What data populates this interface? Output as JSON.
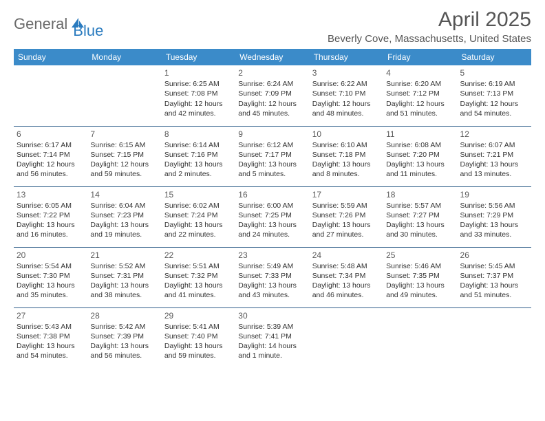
{
  "logo": {
    "part1": "General",
    "part2": "Blue"
  },
  "title": "April 2025",
  "location": "Beverly Cove, Massachusetts, United States",
  "colors": {
    "header_bg": "#3b8bc9",
    "header_text": "#ffffff",
    "border": "#2f5e8a",
    "logo_gray": "#6a6a6a",
    "logo_blue": "#2a7bbf",
    "body_text": "#333333"
  },
  "day_headers": [
    "Sunday",
    "Monday",
    "Tuesday",
    "Wednesday",
    "Thursday",
    "Friday",
    "Saturday"
  ],
  "weeks": [
    [
      null,
      null,
      {
        "n": "1",
        "sr": "Sunrise: 6:25 AM",
        "ss": "Sunset: 7:08 PM",
        "dl": "Daylight: 12 hours and 42 minutes."
      },
      {
        "n": "2",
        "sr": "Sunrise: 6:24 AM",
        "ss": "Sunset: 7:09 PM",
        "dl": "Daylight: 12 hours and 45 minutes."
      },
      {
        "n": "3",
        "sr": "Sunrise: 6:22 AM",
        "ss": "Sunset: 7:10 PM",
        "dl": "Daylight: 12 hours and 48 minutes."
      },
      {
        "n": "4",
        "sr": "Sunrise: 6:20 AM",
        "ss": "Sunset: 7:12 PM",
        "dl": "Daylight: 12 hours and 51 minutes."
      },
      {
        "n": "5",
        "sr": "Sunrise: 6:19 AM",
        "ss": "Sunset: 7:13 PM",
        "dl": "Daylight: 12 hours and 54 minutes."
      }
    ],
    [
      {
        "n": "6",
        "sr": "Sunrise: 6:17 AM",
        "ss": "Sunset: 7:14 PM",
        "dl": "Daylight: 12 hours and 56 minutes."
      },
      {
        "n": "7",
        "sr": "Sunrise: 6:15 AM",
        "ss": "Sunset: 7:15 PM",
        "dl": "Daylight: 12 hours and 59 minutes."
      },
      {
        "n": "8",
        "sr": "Sunrise: 6:14 AM",
        "ss": "Sunset: 7:16 PM",
        "dl": "Daylight: 13 hours and 2 minutes."
      },
      {
        "n": "9",
        "sr": "Sunrise: 6:12 AM",
        "ss": "Sunset: 7:17 PM",
        "dl": "Daylight: 13 hours and 5 minutes."
      },
      {
        "n": "10",
        "sr": "Sunrise: 6:10 AM",
        "ss": "Sunset: 7:18 PM",
        "dl": "Daylight: 13 hours and 8 minutes."
      },
      {
        "n": "11",
        "sr": "Sunrise: 6:08 AM",
        "ss": "Sunset: 7:20 PM",
        "dl": "Daylight: 13 hours and 11 minutes."
      },
      {
        "n": "12",
        "sr": "Sunrise: 6:07 AM",
        "ss": "Sunset: 7:21 PM",
        "dl": "Daylight: 13 hours and 13 minutes."
      }
    ],
    [
      {
        "n": "13",
        "sr": "Sunrise: 6:05 AM",
        "ss": "Sunset: 7:22 PM",
        "dl": "Daylight: 13 hours and 16 minutes."
      },
      {
        "n": "14",
        "sr": "Sunrise: 6:04 AM",
        "ss": "Sunset: 7:23 PM",
        "dl": "Daylight: 13 hours and 19 minutes."
      },
      {
        "n": "15",
        "sr": "Sunrise: 6:02 AM",
        "ss": "Sunset: 7:24 PM",
        "dl": "Daylight: 13 hours and 22 minutes."
      },
      {
        "n": "16",
        "sr": "Sunrise: 6:00 AM",
        "ss": "Sunset: 7:25 PM",
        "dl": "Daylight: 13 hours and 24 minutes."
      },
      {
        "n": "17",
        "sr": "Sunrise: 5:59 AM",
        "ss": "Sunset: 7:26 PM",
        "dl": "Daylight: 13 hours and 27 minutes."
      },
      {
        "n": "18",
        "sr": "Sunrise: 5:57 AM",
        "ss": "Sunset: 7:27 PM",
        "dl": "Daylight: 13 hours and 30 minutes."
      },
      {
        "n": "19",
        "sr": "Sunrise: 5:56 AM",
        "ss": "Sunset: 7:29 PM",
        "dl": "Daylight: 13 hours and 33 minutes."
      }
    ],
    [
      {
        "n": "20",
        "sr": "Sunrise: 5:54 AM",
        "ss": "Sunset: 7:30 PM",
        "dl": "Daylight: 13 hours and 35 minutes."
      },
      {
        "n": "21",
        "sr": "Sunrise: 5:52 AM",
        "ss": "Sunset: 7:31 PM",
        "dl": "Daylight: 13 hours and 38 minutes."
      },
      {
        "n": "22",
        "sr": "Sunrise: 5:51 AM",
        "ss": "Sunset: 7:32 PM",
        "dl": "Daylight: 13 hours and 41 minutes."
      },
      {
        "n": "23",
        "sr": "Sunrise: 5:49 AM",
        "ss": "Sunset: 7:33 PM",
        "dl": "Daylight: 13 hours and 43 minutes."
      },
      {
        "n": "24",
        "sr": "Sunrise: 5:48 AM",
        "ss": "Sunset: 7:34 PM",
        "dl": "Daylight: 13 hours and 46 minutes."
      },
      {
        "n": "25",
        "sr": "Sunrise: 5:46 AM",
        "ss": "Sunset: 7:35 PM",
        "dl": "Daylight: 13 hours and 49 minutes."
      },
      {
        "n": "26",
        "sr": "Sunrise: 5:45 AM",
        "ss": "Sunset: 7:37 PM",
        "dl": "Daylight: 13 hours and 51 minutes."
      }
    ],
    [
      {
        "n": "27",
        "sr": "Sunrise: 5:43 AM",
        "ss": "Sunset: 7:38 PM",
        "dl": "Daylight: 13 hours and 54 minutes."
      },
      {
        "n": "28",
        "sr": "Sunrise: 5:42 AM",
        "ss": "Sunset: 7:39 PM",
        "dl": "Daylight: 13 hours and 56 minutes."
      },
      {
        "n": "29",
        "sr": "Sunrise: 5:41 AM",
        "ss": "Sunset: 7:40 PM",
        "dl": "Daylight: 13 hours and 59 minutes."
      },
      {
        "n": "30",
        "sr": "Sunrise: 5:39 AM",
        "ss": "Sunset: 7:41 PM",
        "dl": "Daylight: 14 hours and 1 minute."
      },
      null,
      null,
      null
    ]
  ]
}
